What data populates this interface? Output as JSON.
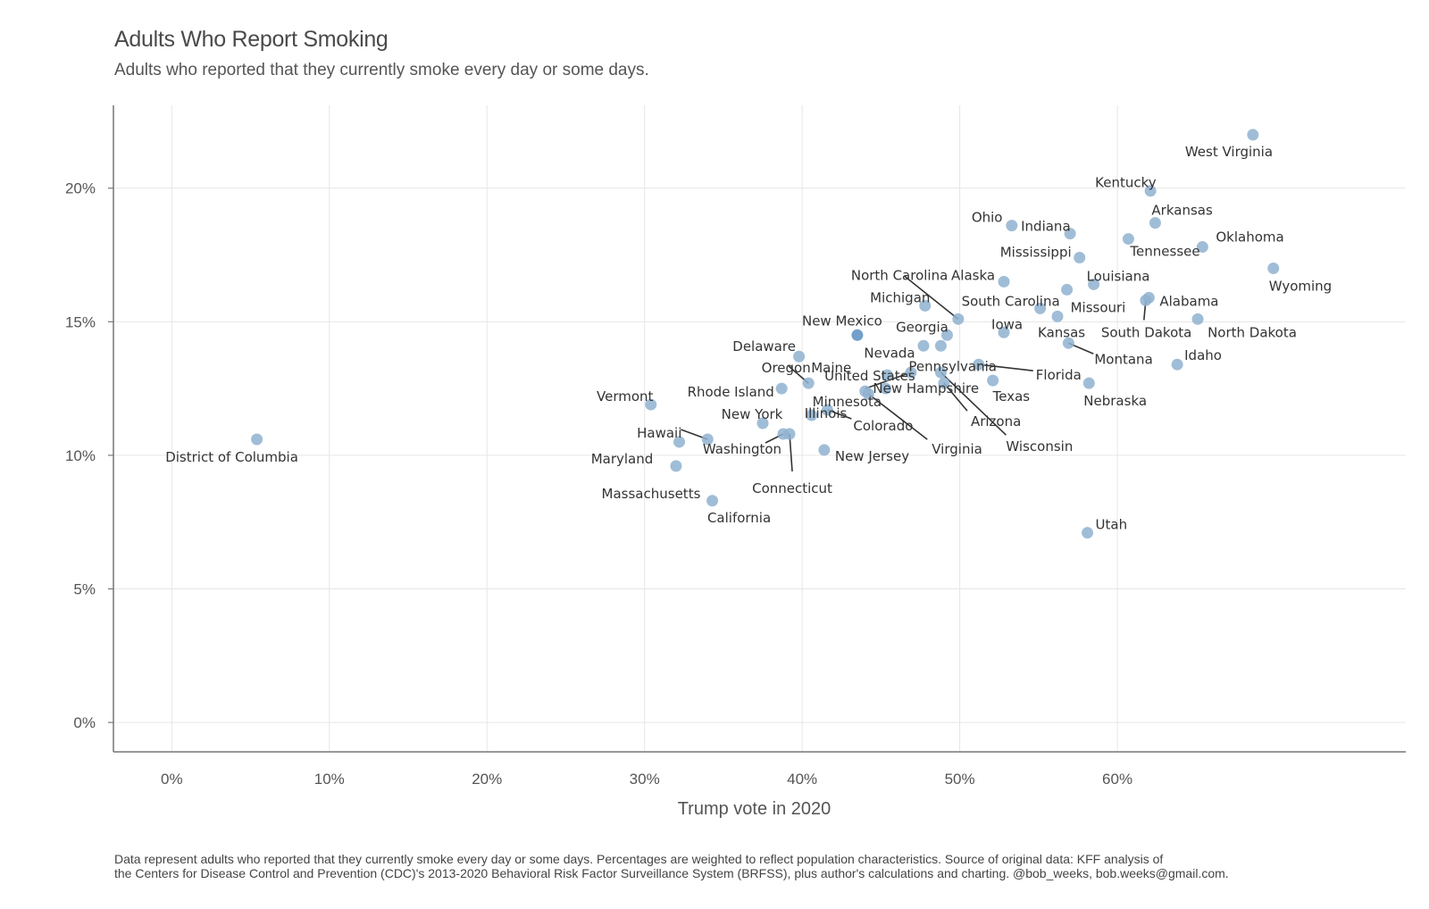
{
  "title": "Adults Who Report Smoking",
  "subtitle": "Adults who reported that they currently smoke every day or some days.",
  "caption": [
    "Data represent adults who reported that they currently smoke every day or some days. Percentages are weighted to reflect population characteristics. Source of original data: KFF analysis of",
    "the Centers for Disease Control and Prevention (CDC)'s 2013-2020 Behavioral Risk Factor Surveillance System (BRFSS), plus author's calculations and charting. @bob_weeks, bob.weeks@gmail.com."
  ],
  "chart_data": {
    "type": "scatter",
    "title": "Adults Who Report Smoking",
    "subtitle": "Adults who reported that they currently smoke every day or some days.",
    "xlabel": "Trump vote in 2020",
    "ylabel": "",
    "xlim": [
      -3.7,
      78.3
    ],
    "ylim": [
      -1.1,
      23.1
    ],
    "x_ticks": [
      0,
      10,
      20,
      30,
      40,
      50,
      60
    ],
    "x_tick_labels": [
      "0%",
      "10%",
      "20%",
      "30%",
      "40%",
      "50%",
      "60%"
    ],
    "y_ticks": [
      0,
      5,
      10,
      15,
      20
    ],
    "y_tick_labels": [
      "0%",
      "5%",
      "10%",
      "15%",
      "20%"
    ],
    "grid": true,
    "point_color": "#8fb2d0",
    "highlight_color": "#5b8fc2",
    "connector_color": "#333333",
    "points": [
      {
        "name": "District of Columbia",
        "x": 5.4,
        "y": 10.6
      },
      {
        "name": "Vermont",
        "x": 30.4,
        "y": 11.9
      },
      {
        "name": "Hawaii",
        "x": 34.0,
        "y": 10.6
      },
      {
        "name": "Maryland",
        "x": 32.2,
        "y": 10.5
      },
      {
        "name": "Massachusetts",
        "x": 32.0,
        "y": 9.6
      },
      {
        "name": "California",
        "x": 34.3,
        "y": 8.3
      },
      {
        "name": "New York",
        "x": 37.5,
        "y": 11.2
      },
      {
        "name": "Washington",
        "x": 38.8,
        "y": 10.8
      },
      {
        "name": "Connecticut",
        "x": 39.2,
        "y": 10.8
      },
      {
        "name": "Illinois",
        "x": 40.6,
        "y": 11.5
      },
      {
        "name": "Rhode Island",
        "x": 38.7,
        "y": 12.5
      },
      {
        "name": "Delaware",
        "x": 39.8,
        "y": 13.7
      },
      {
        "name": "Oregon",
        "x": 40.4,
        "y": 12.7
      },
      {
        "name": "Colorado",
        "x": 41.6,
        "y": 11.7
      },
      {
        "name": "New Jersey",
        "x": 41.4,
        "y": 10.2
      },
      {
        "name": "New Mexico",
        "x": 43.5,
        "y": 14.5
      },
      {
        "name": "Maine",
        "x": 44.0,
        "y": 12.4
      },
      {
        "name": "Minnesota",
        "x": 45.3,
        "y": 12.5
      },
      {
        "name": "Virginia",
        "x": 44.2,
        "y": 12.3
      },
      {
        "name": "New Hampshire",
        "x": 45.4,
        "y": 13.0
      },
      {
        "name": "United States",
        "x": 46.9,
        "y": 13.1
      },
      {
        "name": "Michigan",
        "x": 47.8,
        "y": 15.6
      },
      {
        "name": "Nevada",
        "x": 47.7,
        "y": 14.1
      },
      {
        "name": "Georgia",
        "x": 49.2,
        "y": 14.5
      },
      {
        "name": "Pennsylvania",
        "x": 48.8,
        "y": 14.1
      },
      {
        "name": "Arizona",
        "x": 49.0,
        "y": 12.7
      },
      {
        "name": "Wisconsin",
        "x": 48.8,
        "y": 13.1
      },
      {
        "name": "North Carolina",
        "x": 49.9,
        "y": 15.1
      },
      {
        "name": "Florida",
        "x": 51.2,
        "y": 13.4
      },
      {
        "name": "Texas",
        "x": 52.1,
        "y": 12.8
      },
      {
        "name": "Alaska",
        "x": 52.8,
        "y": 16.5
      },
      {
        "name": "Iowa",
        "x": 52.8,
        "y": 14.6
      },
      {
        "name": "Ohio",
        "x": 53.3,
        "y": 18.6
      },
      {
        "name": "South Carolina",
        "x": 55.1,
        "y": 15.5
      },
      {
        "name": "Kansas",
        "x": 56.2,
        "y": 15.2
      },
      {
        "name": "Missouri",
        "x": 56.8,
        "y": 16.2
      },
      {
        "name": "Montana",
        "x": 56.9,
        "y": 14.2
      },
      {
        "name": "Indiana",
        "x": 57.0,
        "y": 18.3
      },
      {
        "name": "Mississippi",
        "x": 57.6,
        "y": 17.4
      },
      {
        "name": "Louisiana",
        "x": 58.5,
        "y": 16.4
      },
      {
        "name": "Nebraska",
        "x": 58.2,
        "y": 12.7
      },
      {
        "name": "Utah",
        "x": 58.1,
        "y": 7.1
      },
      {
        "name": "Tennessee",
        "x": 60.7,
        "y": 18.1
      },
      {
        "name": "South Dakota",
        "x": 61.8,
        "y": 15.8
      },
      {
        "name": "Alabama",
        "x": 62.0,
        "y": 15.9
      },
      {
        "name": "Kentucky",
        "x": 62.1,
        "y": 19.9
      },
      {
        "name": "Arkansas",
        "x": 62.4,
        "y": 18.7
      },
      {
        "name": "Idaho",
        "x": 63.8,
        "y": 13.4
      },
      {
        "name": "North Dakota",
        "x": 65.1,
        "y": 15.1
      },
      {
        "name": "Oklahoma",
        "x": 65.4,
        "y": 17.8
      },
      {
        "name": "West Virginia",
        "x": 68.6,
        "y": 22.0
      },
      {
        "name": "Wyoming",
        "x": 69.9,
        "y": 17.0
      }
    ]
  }
}
